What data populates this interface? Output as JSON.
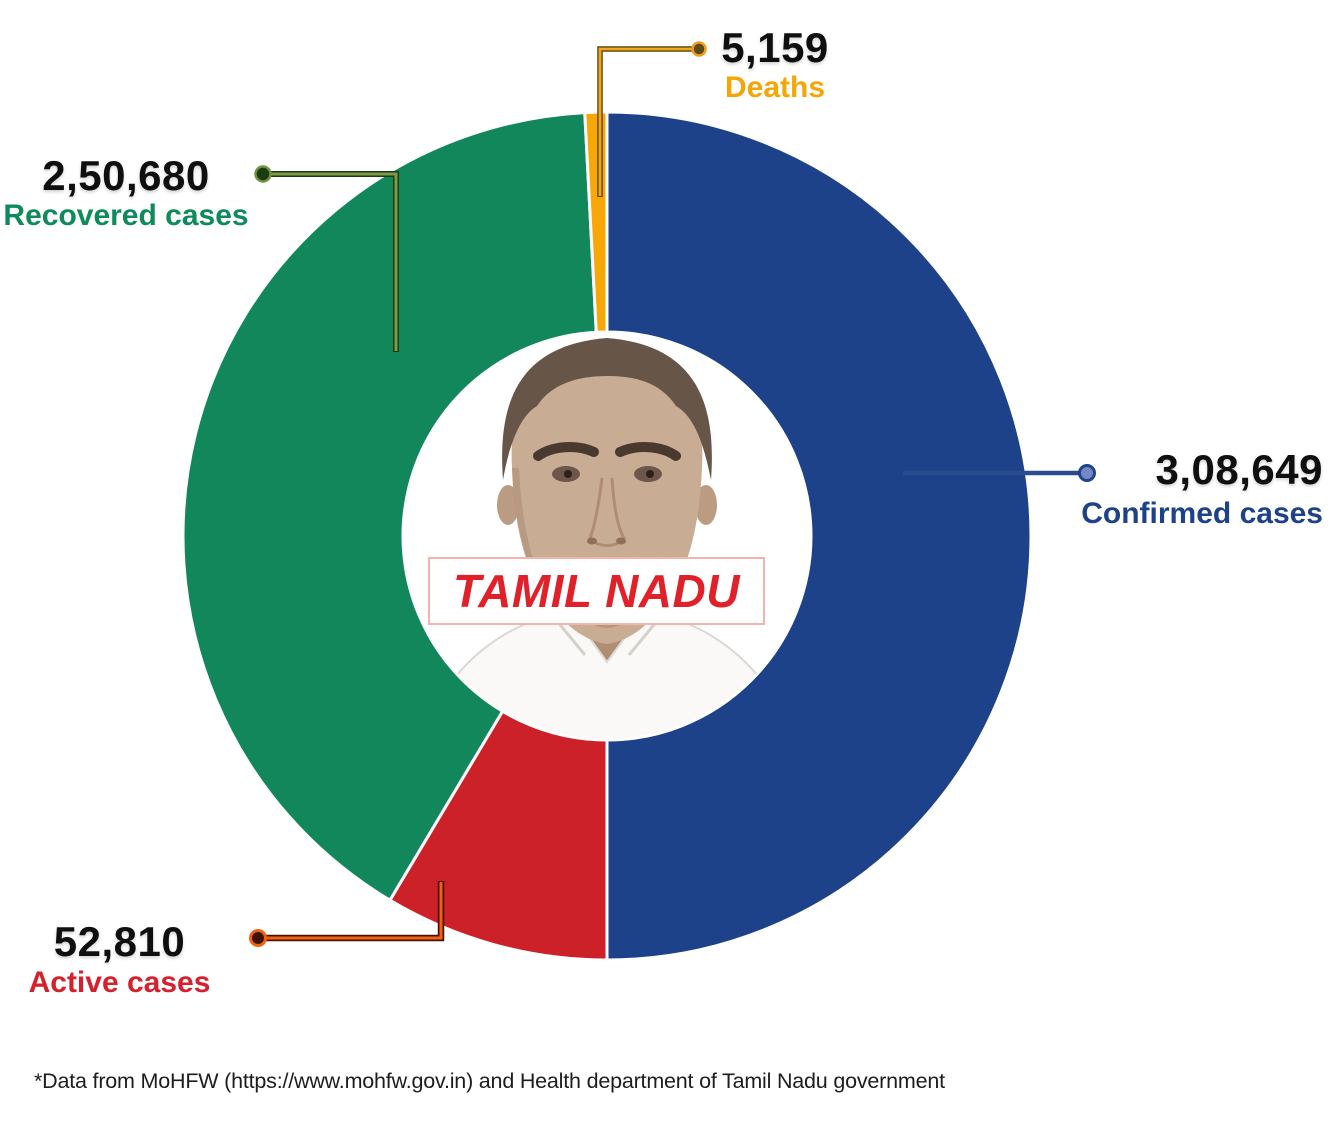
{
  "chart_data": {
    "type": "pie",
    "subtype": "donut",
    "order": "clockwise-from-12-oclock",
    "center_title": "TAMIL NADU",
    "segments": [
      {
        "name": "Confirmed cases",
        "value": 308649,
        "display": "3,08,649",
        "color": "#1d4289",
        "label_color": "#1d4289"
      },
      {
        "name": "Active cases",
        "value": 52810,
        "display": "52,810",
        "color": "#cc2128",
        "label_color": "#d6202c"
      },
      {
        "name": "Recovered cases",
        "value": 250680,
        "display": "2,50,680",
        "color": "#13875c",
        "label_color": "#0e8a5c"
      },
      {
        "name": "Deaths",
        "value": 5159,
        "display": "5,159",
        "color": "#f7a708",
        "label_color": "#f5a504"
      }
    ],
    "layout_note": "confirmed occupies exactly half the ring; total angle base = 617298 (2 x confirmed)",
    "value_format": "Indian digit grouping",
    "footnote": "*Data from MoHFW (https://www.mohfw.gov.in) and Health department of Tamil Nadu government"
  },
  "center": {
    "state_name": "TAMIL NADU"
  },
  "footer": {
    "text": "*Data from MoHFW (https://www.mohfw.gov.in) and Health department of Tamil Nadu government"
  }
}
